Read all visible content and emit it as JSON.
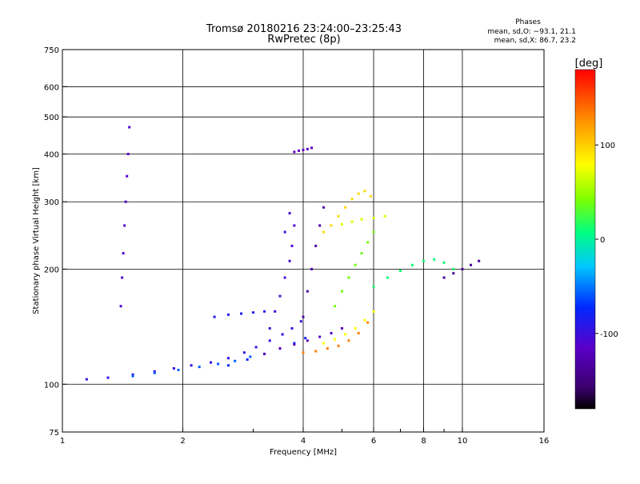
{
  "chart_data": {
    "type": "scatter",
    "title": "Tromsø 20180216 23:24:00–23:25:43",
    "subtitle": "RwPretec (8p)",
    "xlabel": "Frequency [MHz]",
    "ylabel": "Stationary phase Virtual Height [km]",
    "xscale": "log",
    "yscale": "log",
    "xlim": [
      1,
      16
    ],
    "ylim": [
      75,
      750
    ],
    "x_ticks": [
      1,
      2,
      4,
      6,
      8,
      10,
      16
    ],
    "x_minor_ticks": [
      3,
      5,
      7,
      9
    ],
    "y_ticks": [
      75,
      100,
      200,
      300,
      400,
      500,
      600,
      750
    ],
    "y_grid": [
      100,
      200,
      300,
      400,
      500,
      600
    ],
    "x_grid": [
      2,
      4,
      6,
      8,
      10
    ],
    "grid": true,
    "stats": {
      "heading": "Phases",
      "line_o": "mean, sd,O: −93.1, 21.1",
      "line_x": "mean, sd,X:  86.7, 23.2"
    },
    "colorbar": {
      "label": "[deg]",
      "min": -180,
      "max": 180,
      "ticks": [
        100,
        0,
        -100
      ],
      "colormap": "rainbow (black → purple → blue → cyan → green → yellow → orange → red)"
    },
    "series": [
      {
        "traces": [
          {
            "x": [
              1.15,
              1.3,
              1.5,
              1.7,
              1.9,
              2.1,
              2.35,
              2.6,
              2.85,
              3.05,
              3.3,
              3.55,
              3.75,
              3.95
            ],
            "y": [
              103,
              104,
              106,
              108,
              110,
              112,
              114,
              117,
              121,
              125,
              130,
              135,
              140,
              146
            ],
            "phase": -95
          },
          {
            "x": [
              1.5,
              1.7,
              1.95,
              2.2,
              2.45,
              2.7,
              2.95
            ],
            "y": [
              105,
              107,
              109,
              111,
              113,
              115,
              118
            ],
            "phase": -60
          },
          {
            "x": [
              2.6,
              2.9,
              3.2,
              3.5,
              3.8,
              4.05
            ],
            "y": [
              112,
              116,
              120,
              124,
              128,
              132
            ],
            "phase": -80
          },
          {
            "x": [
              3.2,
              3.5,
              3.8,
              4.1,
              4.4,
              4.7,
              5.0
            ],
            "y": [
              120,
              124,
              127,
              130,
              133,
              136,
              140
            ],
            "phase": -120
          },
          {
            "x": [
              4.0,
              4.3,
              4.6,
              4.9,
              5.2,
              5.5,
              5.8,
              6.0
            ],
            "y": [
              121,
              122,
              124,
              126,
              130,
              136,
              145,
              155
            ],
            "phase": 130
          },
          {
            "x": [
              4.5,
              4.8,
              5.1,
              5.4,
              5.7,
              6.0
            ],
            "y": [
              128,
              131,
              135,
              140,
              147,
              155
            ],
            "phase": 80
          },
          {
            "x": [
              1.4,
              1.41,
              1.42,
              1.43,
              1.44,
              1.45,
              1.46,
              1.47
            ],
            "y": [
              160,
              190,
              220,
              260,
              300,
              350,
              400,
              470
            ],
            "phase": -110
          },
          {
            "x": [
              3.3,
              3.4,
              3.5,
              3.6,
              3.7,
              3.75,
              3.8,
              3.7,
              3.6
            ],
            "y": [
              140,
              155,
              170,
              190,
              210,
              230,
              260,
              280,
              250
            ],
            "phase": -105
          },
          {
            "x": [
              4.0,
              4.1,
              4.2,
              4.3,
              4.4,
              4.5
            ],
            "y": [
              150,
              175,
              200,
              230,
              260,
              290
            ],
            "phase": -130
          },
          {
            "x": [
              4.5,
              4.7,
              4.9,
              5.1,
              5.3,
              5.5,
              5.7,
              5.9
            ],
            "y": [
              250,
              260,
              275,
              290,
              305,
              315,
              320,
              310
            ],
            "phase": 95
          },
          {
            "x": [
              4.8,
              5.0,
              5.2,
              5.4,
              5.6,
              5.8,
              6.0
            ],
            "y": [
              160,
              175,
              190,
              205,
              220,
              235,
              250
            ],
            "phase": 40
          },
          {
            "x": [
              6.0,
              6.5,
              7.0,
              7.5,
              8.0,
              8.5,
              9.0,
              9.5
            ],
            "y": [
              180,
              190,
              198,
              205,
              210,
              212,
              208,
              200
            ],
            "phase": 10
          },
          {
            "x": [
              9.0,
              9.5,
              10.0,
              10.5,
              11.0
            ],
            "y": [
              190,
              195,
              200,
              205,
              210
            ],
            "phase": -140
          },
          {
            "x": [
              2.4,
              2.6,
              2.8,
              3.0,
              3.2
            ],
            "y": [
              150,
              152,
              153,
              154,
              155
            ],
            "phase": -90
          },
          {
            "x": [
              3.8,
              3.9,
              4.0,
              4.1,
              4.2
            ],
            "y": [
              405,
              408,
              410,
              412,
              415
            ],
            "phase": -115
          },
          {
            "x": [
              5.0,
              5.3,
              5.6,
              6.0,
              6.4
            ],
            "y": [
              262,
              266,
              270,
              272,
              275
            ],
            "phase": 70
          }
        ]
      }
    ]
  }
}
